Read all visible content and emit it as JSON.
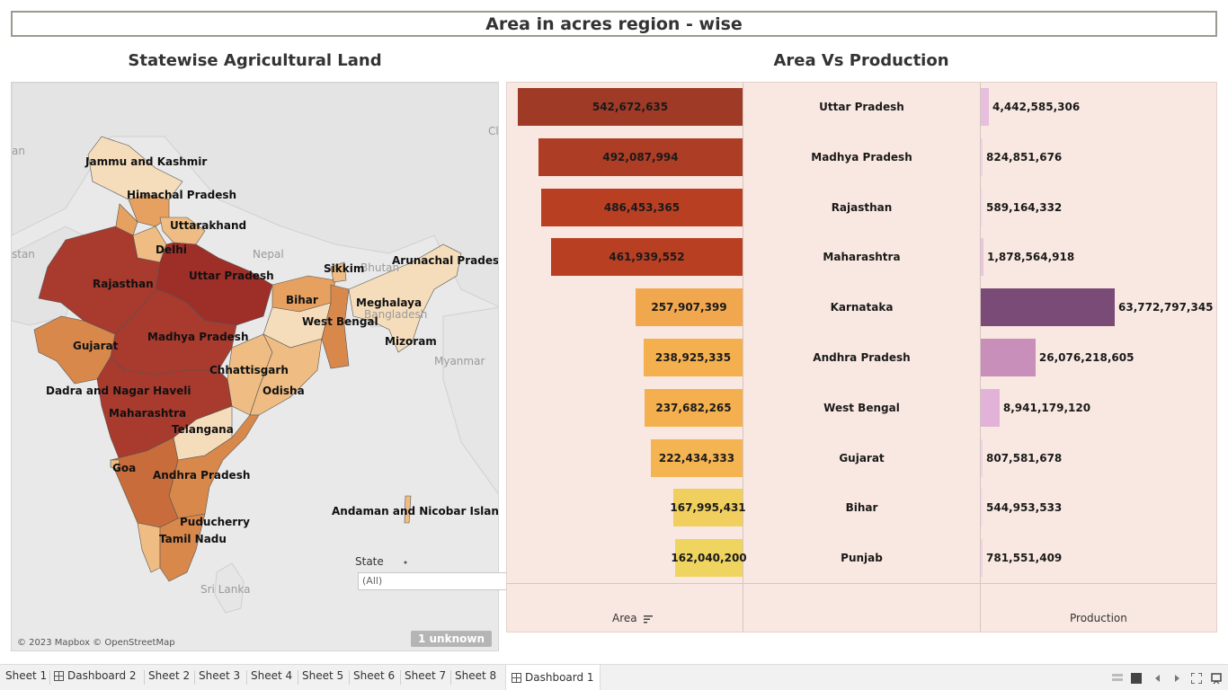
{
  "dashboard": {
    "title": "Area in acres region - wise"
  },
  "map_sheet": {
    "title": "Statewise Agricultural Land",
    "labels": {
      "jk": "Jammu and Kashmir",
      "hp": "Himachal Pradesh",
      "uk": "Uttarakhand",
      "dl": "Delhi",
      "rj": "Rajasthan",
      "up": "Uttar Pradesh",
      "sk": "Sikkim",
      "ar": "Arunachal Pradesh",
      "br": "Bihar",
      "ml": "Meghalaya",
      "wb": "West Bengal",
      "mz": "Mizoram",
      "gj": "Gujarat",
      "mp": "Madhya Pradesh",
      "cg": "Chhattisgarh",
      "od": "Odisha",
      "dn": "Dadra and Nagar Haveli",
      "mh": "Maharashtra",
      "tg": "Telangana",
      "ga": "Goa",
      "ap": "Andhra Pradesh",
      "py": "Puducherry",
      "tn": "Tamil Nadu",
      "an": "Andaman and Nicobar Islands"
    },
    "background_labels": {
      "nepal": "Nepal",
      "bhutan": "Bhutan",
      "bangladesh": "Bangladesh",
      "myanmar": "Myanmar",
      "srilanka": "Sri Lanka",
      "pakistan_partial": "stan",
      "china_partial": "Cl",
      "afghan_partial": "an"
    },
    "copyright": "© 2023 Mapbox © OpenStreetMap",
    "unknown_badge": "1 unknown",
    "filter": {
      "label": "State",
      "value": "(All)"
    },
    "colors": {
      "highest": "#9e2f28",
      "high": "#a83a2e",
      "mid_high": "#c96c3c",
      "mid": "#d9884b",
      "mid_low": "#e6a060",
      "low": "#efbd83",
      "lowest": "#f5ddbc"
    }
  },
  "chart_sheet": {
    "title": "Area Vs Production",
    "area_axis_title": "Area",
    "production_axis_title": "Production"
  },
  "chart_data": {
    "type": "bar",
    "title": "Area Vs Production",
    "categories": [
      "Uttar Pradesh",
      "Madhya Pradesh",
      "Rajasthan",
      "Maharashtra",
      "Karnataka",
      "Andhra Pradesh",
      "West Bengal",
      "Gujarat",
      "Bihar",
      "Punjab"
    ],
    "series": [
      {
        "name": "Area",
        "values": [
          542672635,
          492087994,
          486453365,
          461939552,
          257907399,
          238925335,
          237682265,
          222434333,
          167995431,
          162040200
        ],
        "labels": [
          "542,672,635",
          "492,087,994",
          "486,453,365",
          "461,939,552",
          "257,907,399",
          "238,925,335",
          "237,682,265",
          "222,434,333",
          "167,995,431",
          "162,040,200"
        ],
        "colors": [
          "#9e3a26",
          "#ad3d24",
          "#b83f22",
          "#b83f22",
          "#f1a74e",
          "#f4b04e",
          "#f4b04e",
          "#f5b452",
          "#f0cf5e",
          "#f0d460"
        ]
      },
      {
        "name": "Production",
        "values": [
          4442585306,
          824851676,
          589164332,
          1878564918,
          63772797345,
          26076218605,
          8941179120,
          807581678,
          544953533,
          781551409
        ],
        "labels": [
          "4,442,585,306",
          "824,851,676",
          "589,164,332",
          "1,878,564,918",
          "63,772,797,345",
          "26,076,218,605",
          "8,941,179,120",
          "807,581,678",
          "544,953,533",
          "781,551,409"
        ],
        "colors": [
          "#e8bede",
          "#efd3e8",
          "#f2dbea",
          "#e9c3e0",
          "#7a4b76",
          "#c98fbb",
          "#e2b2d8",
          "#efd3e8",
          "#f2dbea",
          "#efd3e8"
        ]
      }
    ],
    "area_max": 542672635,
    "production_max": 63772797345
  },
  "tabs": [
    {
      "label": "Sheet 1",
      "type": "sheet"
    },
    {
      "label": "Dashboard 2",
      "type": "dashboard"
    },
    {
      "label": "Sheet 2",
      "type": "sheet"
    },
    {
      "label": "Sheet 3",
      "type": "sheet"
    },
    {
      "label": "Sheet 4",
      "type": "sheet"
    },
    {
      "label": "Sheet 5",
      "type": "sheet"
    },
    {
      "label": "Sheet 6",
      "type": "sheet"
    },
    {
      "label": "Sheet 7",
      "type": "sheet"
    },
    {
      "label": "Sheet 8",
      "type": "sheet"
    },
    {
      "label": "Dashboard 1",
      "type": "dashboard",
      "active": true
    }
  ]
}
